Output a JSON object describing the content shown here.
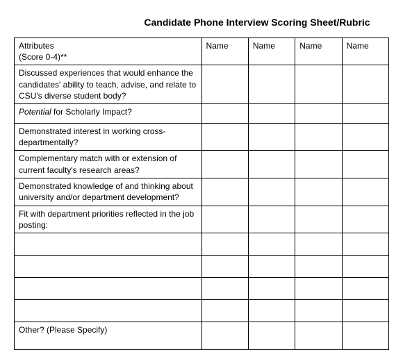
{
  "title": "Candidate Phone Interview Scoring Sheet/Rubric",
  "header": {
    "attr_line1": "Attributes",
    "attr_line2": "(Score 0-4)**",
    "name1": "Name",
    "name2": "Name",
    "name3": "Name",
    "name4": "Name"
  },
  "rows": {
    "r1": "Discussed experiences that would enhance the candidates' ability to teach, advise, and relate to CSU's diverse student body?",
    "r2_lead": "Potential",
    "r2_rest": " for Scholarly Impact?",
    "r3": "Demonstrated interest in working cross-departmentally?",
    "r4": "Complementary match with or extension of current faculty's research areas?",
    "r5": "Demonstrated knowledge of and thinking about university and/or department development?",
    "r6": "Fit with department priorities reflected in the job posting:",
    "r_other": "Other? (Please Specify)"
  },
  "style": {
    "type": "table",
    "columns": [
      "Attributes (Score 0-4)**",
      "Name",
      "Name",
      "Name",
      "Name"
    ],
    "column_widths_pct": [
      50,
      12.5,
      12.5,
      12.5,
      12.5
    ],
    "border_color": "#000000",
    "background_color": "#ffffff",
    "text_color": "#000000",
    "title_fontsize_pt": 14,
    "body_fontsize_pt": 12,
    "font_family": "Arial",
    "title_weight": "bold"
  }
}
